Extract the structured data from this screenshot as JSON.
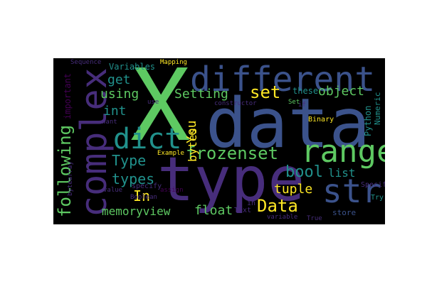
{
  "palette": {
    "background": "#000000",
    "yellow": "#fde725",
    "green": "#5ec962",
    "teal": "#21918c",
    "blue": "#3b528b",
    "purple": "#440154",
    "violet": "#472d7b"
  },
  "words": {
    "x": "X",
    "different": "different",
    "data_big": "data",
    "complex": "complex",
    "type": "type",
    "range": "range",
    "dict": "dict",
    "str": "str",
    "frozenset": "frozenset",
    "set": "set",
    "object": "object",
    "setting": "Setting",
    "using": "using",
    "get": "get",
    "int": "int",
    "type_cap": "Type",
    "types": "types",
    "in_cap": "In",
    "you": "You",
    "bytes": "bytes",
    "bool": "bool",
    "list": "list",
    "tuple": "tuple",
    "data_cap": "Data",
    "memoryview": "memoryview",
    "float": "float",
    "following": "following",
    "important": "important",
    "variables": "Variables",
    "sequence": "Sequence",
    "mapping": "Mapping",
    "use": "use",
    "want": "want",
    "constructor": "constructor",
    "assign": "assign",
    "these": "these",
    "if": "if",
    "set_cap": "Set",
    "python": "Python",
    "numeric": "Numeric",
    "binary": "Binary",
    "example": "Example",
    "bytearray": "bytearray",
    "specify": "specify",
    "value": "value",
    "boolean": "Boolean",
    "in_low": "in",
    "text": "Text",
    "variable": "variable",
    "true": "True",
    "store": "store",
    "try": "Try",
    "specific": "Specific"
  }
}
